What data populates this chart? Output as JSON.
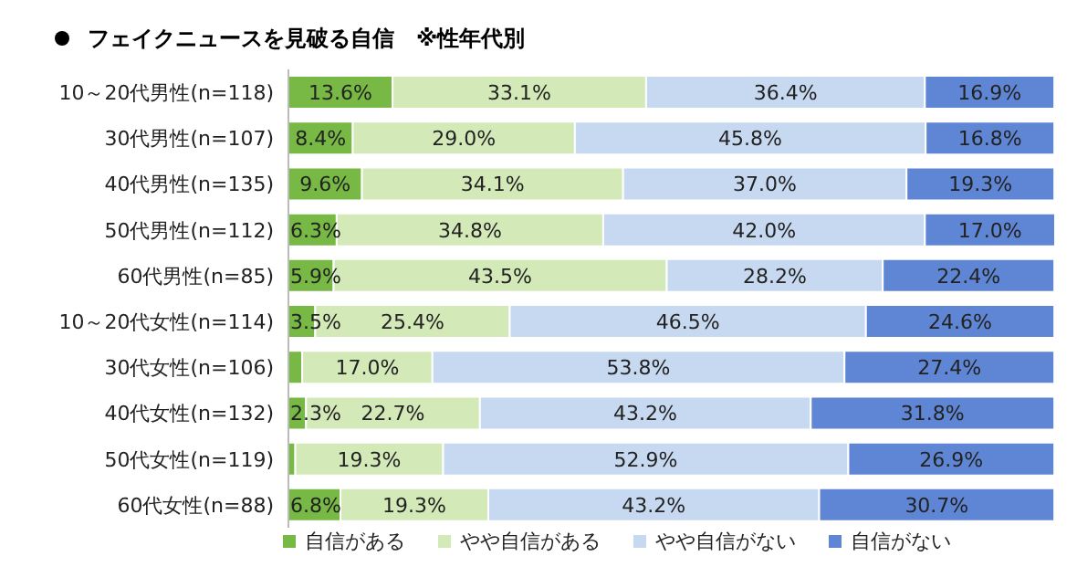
{
  "chart_data": {
    "type": "bar",
    "orientation": "horizontal",
    "stacked": true,
    "title": "フェイクニュースを見破る自信　※性年代別",
    "categories": [
      "10～20代男性(n=118)",
      "30代男性(n=107)",
      "40代男性(n=135)",
      "50代男性(n=112)",
      "60代男性(n=85)",
      "10～20代女性(n=114)",
      "30代女性(n=106)",
      "40代女性(n=132)",
      "50代女性(n=119)",
      "60代女性(n=88)"
    ],
    "series": [
      {
        "name": "自信がある",
        "color": "#77b944",
        "values": [
          13.6,
          8.4,
          9.6,
          6.3,
          5.9,
          3.5,
          1.8,
          2.3,
          0.9,
          6.8
        ],
        "value_labels": [
          "13.6%",
          "8.4%",
          "9.6%",
          "6.3%",
          "5.9%",
          "3.5%",
          null,
          "2.3%",
          null,
          "6.8%"
        ]
      },
      {
        "name": "やや自信がある",
        "color": "#d3eab8",
        "values": [
          33.1,
          29.0,
          34.1,
          34.8,
          43.5,
          25.4,
          17.0,
          22.7,
          19.3,
          19.3
        ],
        "value_labels": [
          "33.1%",
          "29.0%",
          "34.1%",
          "34.8%",
          "43.5%",
          "25.4%",
          "17.0%",
          "22.7%",
          "19.3%",
          "19.3%"
        ]
      },
      {
        "name": "やや自信がない",
        "color": "#c6d9f0",
        "values": [
          36.4,
          45.8,
          37.0,
          42.0,
          28.2,
          46.5,
          53.8,
          43.2,
          52.9,
          43.2
        ],
        "value_labels": [
          "36.4%",
          "45.8%",
          "37.0%",
          "42.0%",
          "28.2%",
          "46.5%",
          "53.8%",
          "43.2%",
          "52.9%",
          "43.2%"
        ]
      },
      {
        "name": "自信がない",
        "color": "#5f86d5",
        "values": [
          16.9,
          16.8,
          19.3,
          17.0,
          22.4,
          24.6,
          27.4,
          31.8,
          26.9,
          30.7
        ],
        "value_labels": [
          "16.9%",
          "16.8%",
          "19.3%",
          "17.0%",
          "22.4%",
          "24.6%",
          "27.4%",
          "31.8%",
          "26.9%",
          "30.7%"
        ]
      }
    ],
    "legend": "bottom"
  }
}
